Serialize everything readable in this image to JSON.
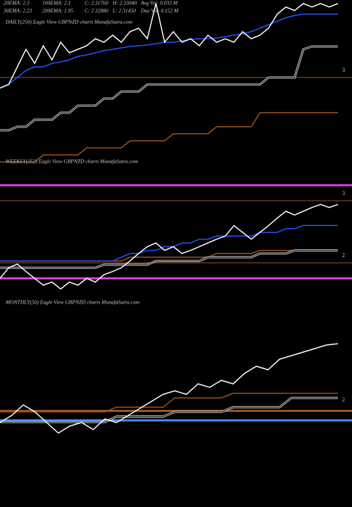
{
  "header": {
    "row1": [
      "20EMA: 2.3",
      "100EMA: 2.1",
      "C: 2.31760",
      "H: 2.33040",
      "Avg Vol: 0.033 M"
    ],
    "row2": [
      "30EMA: 2.23",
      "200EMA: 1.95",
      "C: 2.32880",
      "L: 2.31450",
      "Day Vol: 0.152 M"
    ]
  },
  "chart_data": [
    {
      "type": "line",
      "title": "DAILY(250) Eagle  View  GBPNZD charts MunafaSutra.com",
      "ylim": [
        2.4,
        3.55
      ],
      "yticks": [
        3
      ],
      "grid": true,
      "grid_color": "#a0521a",
      "series": [
        {
          "color": "#a0521a",
          "values": [
            2.4,
            2.4,
            2.4,
            2.4,
            2.4,
            2.45,
            2.45,
            2.45,
            2.45,
            2.45,
            2.5,
            2.5,
            2.5,
            2.5,
            2.5,
            2.55,
            2.55,
            2.55,
            2.55,
            2.55,
            2.6,
            2.6,
            2.6,
            2.6,
            2.6,
            2.65,
            2.65,
            2.65,
            2.65,
            2.65,
            2.75,
            2.75,
            2.75,
            2.75,
            2.75,
            2.75,
            2.75,
            2.75,
            2.75,
            2.75
          ]
        },
        {
          "color": "#cccccc",
          "double": true,
          "values": [
            2.625,
            2.625,
            2.65,
            2.65,
            2.7,
            2.7,
            2.7,
            2.75,
            2.75,
            2.8,
            2.8,
            2.8,
            2.85,
            2.85,
            2.9,
            2.9,
            2.9,
            2.95,
            2.95,
            2.95,
            2.95,
            2.95,
            2.95,
            2.95,
            2.95,
            2.95,
            2.95,
            2.95,
            2.95,
            2.95,
            2.95,
            3.0,
            3.0,
            3.0,
            3.0,
            3.2,
            3.22,
            3.22,
            3.22,
            3.22
          ]
        },
        {
          "color": "#2255ff",
          "values": [
            2.925,
            2.95,
            3.0,
            3.05,
            3.075,
            3.075,
            3.1,
            3.11,
            3.125,
            3.15,
            3.16,
            3.175,
            3.19,
            3.2,
            3.21,
            3.22,
            3.225,
            3.23,
            3.24,
            3.25,
            3.25,
            3.26,
            3.27,
            3.275,
            3.275,
            3.28,
            3.29,
            3.3,
            3.31,
            3.325,
            3.35,
            3.375,
            3.4,
            3.425,
            3.44,
            3.45,
            3.45,
            3.45,
            3.45,
            3.45
          ]
        },
        {
          "color": "#ffffff",
          "values": [
            2.925,
            2.95,
            3.075,
            3.2,
            3.1,
            3.225,
            3.125,
            3.25,
            3.175,
            3.2,
            3.225,
            3.275,
            3.25,
            3.3,
            3.25,
            3.325,
            3.35,
            3.275,
            3.525,
            3.25,
            3.325,
            3.25,
            3.275,
            3.225,
            3.3,
            3.25,
            3.275,
            3.25,
            3.325,
            3.275,
            3.3,
            3.35,
            3.45,
            3.5,
            3.475,
            3.525,
            3.5,
            3.525,
            3.5,
            3.525
          ]
        }
      ]
    },
    {
      "type": "line",
      "title": "WEEKLY(252) Eagle  View  GBPNZD charts MunafaSutra.com",
      "ylim": [
        1.47,
        3.51
      ],
      "yticks": [
        3,
        2
      ],
      "grid": true,
      "grid_color": "#a0521a",
      "hlines": [
        {
          "value": 3.25,
          "color": "#e040e0"
        },
        {
          "value": 1.75,
          "color": "#e040e0"
        }
      ],
      "series": [
        {
          "color": "#a0521a",
          "values": [
            2.03,
            2.03,
            2.03,
            2.03,
            2.03,
            2.03,
            2.03,
            2.03,
            2.03,
            2.03,
            2.03,
            2.03,
            2.03,
            2.03,
            2.03,
            2.09,
            2.09,
            2.09,
            2.09,
            2.09,
            2.09,
            2.09,
            2.09,
            2.09,
            2.09,
            2.15,
            2.15,
            2.15,
            2.15,
            2.15,
            2.2,
            2.2,
            2.2,
            2.2,
            2.2,
            2.2,
            2.2,
            2.2,
            2.2,
            2.2
          ]
        },
        {
          "color": "#cccccc",
          "double": true,
          "values": [
            1.92,
            1.92,
            1.92,
            1.92,
            1.92,
            1.92,
            1.92,
            1.92,
            1.92,
            1.92,
            1.92,
            1.92,
            1.97,
            1.97,
            1.97,
            1.97,
            1.97,
            1.97,
            2.03,
            2.03,
            2.03,
            2.03,
            2.03,
            2.03,
            2.09,
            2.09,
            2.09,
            2.09,
            2.09,
            2.09,
            2.15,
            2.15,
            2.15,
            2.15,
            2.2,
            2.2,
            2.2,
            2.2,
            2.2,
            2.2
          ]
        },
        {
          "color": "#2255ff",
          "values": [
            2.03,
            2.03,
            2.03,
            2.03,
            2.03,
            2.03,
            2.03,
            2.03,
            2.03,
            2.03,
            2.03,
            2.03,
            2.03,
            2.03,
            2.09,
            2.15,
            2.15,
            2.2,
            2.2,
            2.26,
            2.26,
            2.32,
            2.32,
            2.38,
            2.38,
            2.43,
            2.43,
            2.43,
            2.43,
            2.43,
            2.49,
            2.49,
            2.49,
            2.55,
            2.55,
            2.6,
            2.6,
            2.6,
            2.6,
            2.6
          ]
        },
        {
          "color": "#ffffff",
          "values": [
            1.75,
            1.92,
            1.98,
            1.86,
            1.75,
            1.64,
            1.69,
            1.58,
            1.69,
            1.64,
            1.75,
            1.69,
            1.81,
            1.86,
            1.92,
            2.03,
            2.15,
            2.26,
            2.32,
            2.2,
            2.26,
            2.15,
            2.2,
            2.26,
            2.32,
            2.38,
            2.43,
            2.6,
            2.49,
            2.38,
            2.49,
            2.6,
            2.72,
            2.83,
            2.77,
            2.83,
            2.89,
            2.94,
            2.89,
            2.94
          ]
        }
      ]
    },
    {
      "type": "line",
      "title": "MONTHLY(50) Eagle  View  GBPNZD charts MunafaSutra.com",
      "ylim": [
        1.0,
        3.05
      ],
      "yticks": [
        2
      ],
      "grid": false,
      "hlines": [
        {
          "value": 1.96,
          "color": "#a0521a"
        },
        {
          "value": 1.858,
          "color": "#4a8cff"
        }
      ],
      "series": [
        {
          "color": "#a0521a",
          "values": [
            1.95,
            1.95,
            1.95,
            1.95,
            1.95,
            1.95,
            1.95,
            1.95,
            1.95,
            1.95,
            2.0,
            2.0,
            2.0,
            2.0,
            2.0,
            2.1,
            2.1,
            2.1,
            2.1,
            2.1,
            2.15,
            2.15,
            2.15,
            2.15,
            2.15,
            2.15,
            2.15,
            2.15,
            2.15,
            2.15
          ]
        },
        {
          "color": "#cccccc",
          "double": true,
          "values": [
            1.84,
            1.84,
            1.84,
            1.84,
            1.84,
            1.84,
            1.84,
            1.84,
            1.84,
            1.84,
            1.9,
            1.9,
            1.9,
            1.9,
            1.9,
            1.95,
            1.95,
            1.95,
            1.95,
            1.95,
            2.0,
            2.0,
            2.0,
            2.0,
            2.0,
            2.1,
            2.1,
            2.1,
            2.1,
            2.1
          ]
        },
        {
          "color": "#ffffff",
          "values": [
            1.835,
            1.911,
            2.025,
            1.949,
            1.835,
            1.721,
            1.797,
            1.835,
            1.759,
            1.873,
            1.835,
            1.911,
            1.987,
            2.063,
            2.139,
            2.177,
            2.139,
            2.252,
            2.214,
            2.29,
            2.252,
            2.366,
            2.442,
            2.404,
            2.518,
            2.556,
            2.594,
            2.632,
            2.67,
            2.685
          ]
        }
      ]
    }
  ]
}
